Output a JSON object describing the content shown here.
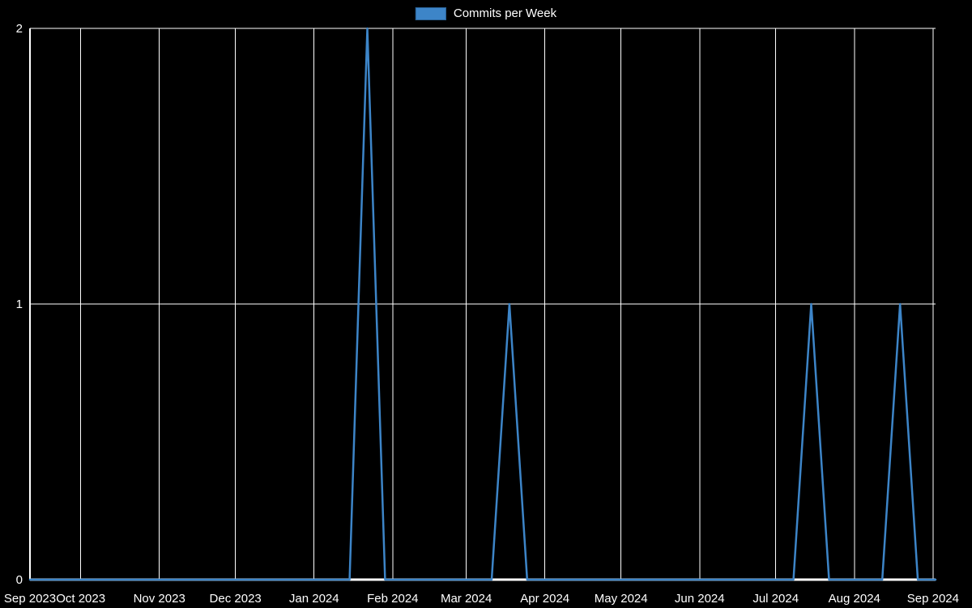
{
  "legend": {
    "label": "Commits per Week"
  },
  "chart_data": {
    "type": "line",
    "title": "",
    "series_name": "Commits per Week",
    "x_start_date": "2023-09-11",
    "x_interval_days": 7,
    "values": [
      0,
      0,
      0,
      0,
      0,
      0,
      0,
      0,
      0,
      0,
      0,
      0,
      0,
      0,
      0,
      0,
      0,
      0,
      0,
      2,
      0,
      0,
      0,
      0,
      0,
      0,
      0,
      1,
      0,
      0,
      0,
      0,
      0,
      0,
      0,
      0,
      0,
      0,
      0,
      0,
      0,
      0,
      0,
      0,
      1,
      0,
      0,
      0,
      0,
      1,
      0,
      0
    ],
    "x_tick_labels": [
      "Sep 2023",
      "Oct 2023",
      "Nov 2023",
      "Dec 2023",
      "Jan 2024",
      "Feb 2024",
      "Mar 2024",
      "Apr 2024",
      "May 2024",
      "Jun 2024",
      "Jul 2024",
      "Aug 2024",
      "Sep 2024"
    ],
    "y_tick_labels": [
      "0",
      "1",
      "2"
    ],
    "ylim": [
      0,
      2
    ],
    "grid": true,
    "legend_position": "top-center",
    "line_color": "#3d85c8",
    "legend_swatch_border": "#2a6399",
    "grid_color": "#ffffff",
    "axis_color": "#ffffff",
    "text_color": "#ffffff",
    "background": "#000000"
  }
}
